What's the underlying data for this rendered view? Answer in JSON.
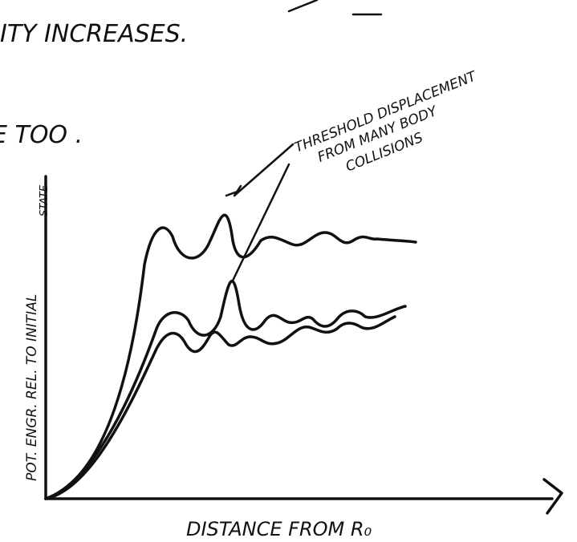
{
  "notes": {
    "line1": "ITY INCREASES.",
    "line2": "E TOO ."
  },
  "sketch": {
    "annotation": [
      "THRESHOLD DISPLACEMENT",
      "FROM MANY BODY",
      "COLLISIONS"
    ],
    "y_axis_label": [
      "POT. ENGR. REL. TO INITIAL",
      "STATE"
    ],
    "x_axis_label": "DISTANCE FROM R₀"
  }
}
